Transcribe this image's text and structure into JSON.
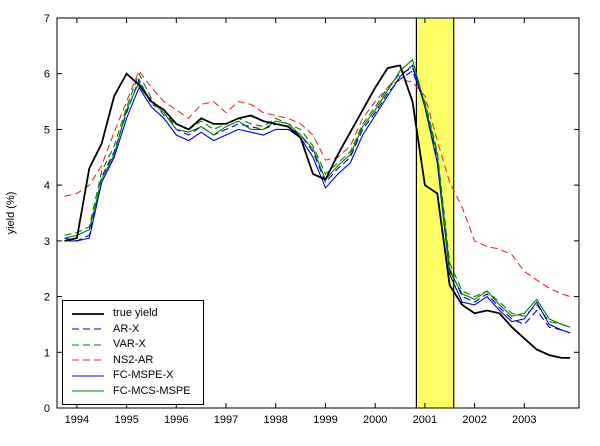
{
  "figure": {
    "background": "#ffffff"
  },
  "chart_data": {
    "type": "line",
    "title": "",
    "xlabel": "",
    "ylabel": "yield (%)",
    "xlim": [
      1993.6,
      2004.1
    ],
    "ylim": [
      0,
      7
    ],
    "x_ticks": [
      1994,
      1995,
      1996,
      1997,
      1998,
      1999,
      2000,
      2001,
      2002,
      2003
    ],
    "y_ticks": [
      0,
      1,
      2,
      3,
      4,
      5,
      6,
      7
    ],
    "grid": false,
    "legend_position": "lower-left",
    "highlight_band": {
      "x0": 2000.83,
      "x1": 2001.58,
      "color": "#ffff66",
      "edge_color": "#000000"
    },
    "x": [
      1993.75,
      1994.0,
      1994.25,
      1994.5,
      1994.75,
      1995.0,
      1995.25,
      1995.5,
      1995.75,
      1996.0,
      1996.25,
      1996.5,
      1996.75,
      1997.0,
      1997.25,
      1997.5,
      1997.75,
      1998.0,
      1998.25,
      1998.5,
      1998.75,
      1999.0,
      1999.25,
      1999.5,
      1999.75,
      2000.0,
      2000.25,
      2000.5,
      2000.75,
      2001.0,
      2001.25,
      2001.5,
      2001.75,
      2002.0,
      2002.25,
      2002.5,
      2002.75,
      2003.0,
      2003.25,
      2003.5,
      2003.75,
      2003.92
    ],
    "series": [
      {
        "name": "true yield",
        "color": "#000000",
        "style": "solid",
        "width": 1.8,
        "values": [
          3.0,
          3.05,
          4.3,
          4.75,
          5.6,
          6.0,
          5.8,
          5.5,
          5.35,
          5.1,
          5.0,
          5.2,
          5.1,
          5.1,
          5.2,
          5.25,
          5.15,
          5.1,
          5.05,
          4.85,
          4.2,
          4.1,
          4.55,
          4.95,
          5.35,
          5.75,
          6.1,
          6.15,
          5.5,
          4.0,
          3.85,
          2.2,
          1.85,
          1.7,
          1.75,
          1.7,
          1.45,
          1.25,
          1.05,
          0.95,
          0.9,
          0.9
        ]
      },
      {
        "name": "AR-X",
        "color": "#0000dd",
        "style": "dashed",
        "width": 1.1,
        "values": [
          3.05,
          3.0,
          3.1,
          4.15,
          4.6,
          5.3,
          5.9,
          5.45,
          5.35,
          5.0,
          4.9,
          5.05,
          4.9,
          5.0,
          5.1,
          5.05,
          5.0,
          5.1,
          5.05,
          4.9,
          4.6,
          4.05,
          4.3,
          4.5,
          5.0,
          5.3,
          5.65,
          5.9,
          6.05,
          5.45,
          4.5,
          2.5,
          2.0,
          1.9,
          2.05,
          1.8,
          1.6,
          1.5,
          1.75,
          1.45,
          1.4,
          1.35
        ]
      },
      {
        "name": "VAR-X",
        "color": "#008000",
        "style": "dashed",
        "width": 1.1,
        "values": [
          3.1,
          3.15,
          3.25,
          4.25,
          4.7,
          5.4,
          6.0,
          5.55,
          5.25,
          5.1,
          5.0,
          5.15,
          5.0,
          5.1,
          5.2,
          5.1,
          5.05,
          5.2,
          5.1,
          5.0,
          4.7,
          4.2,
          4.4,
          4.6,
          5.1,
          5.4,
          5.75,
          6.0,
          6.1,
          5.5,
          4.6,
          2.6,
          2.1,
          2.0,
          2.1,
          1.9,
          1.7,
          1.65,
          1.85,
          1.55,
          1.5,
          1.45
        ]
      },
      {
        "name": "NS2-AR",
        "color": "#e03030",
        "style": "dashed",
        "width": 1.1,
        "values": [
          3.8,
          3.85,
          4.0,
          4.35,
          4.95,
          5.5,
          6.05,
          5.75,
          5.5,
          5.35,
          5.2,
          5.45,
          5.5,
          5.3,
          5.5,
          5.45,
          5.3,
          5.25,
          5.2,
          5.1,
          4.9,
          4.45,
          4.5,
          4.7,
          5.2,
          5.5,
          5.75,
          5.9,
          5.85,
          5.6,
          4.8,
          4.05,
          3.6,
          3.0,
          2.9,
          2.85,
          2.75,
          2.45,
          2.3,
          2.15,
          2.05,
          2.0
        ]
      },
      {
        "name": "FC-MSPE-X",
        "color": "#0000dd",
        "style": "solid",
        "width": 1.1,
        "values": [
          3.0,
          3.0,
          3.05,
          4.05,
          4.5,
          5.2,
          5.75,
          5.4,
          5.2,
          4.9,
          4.8,
          4.95,
          4.8,
          4.9,
          5.0,
          4.95,
          4.9,
          5.0,
          5.0,
          4.85,
          4.5,
          3.95,
          4.2,
          4.4,
          4.9,
          5.25,
          5.6,
          5.95,
          6.15,
          5.4,
          4.4,
          2.4,
          1.9,
          1.85,
          2.0,
          1.75,
          1.55,
          1.6,
          1.9,
          1.5,
          1.4,
          1.35
        ]
      },
      {
        "name": "FC-MCS-MSPE",
        "color": "#008000",
        "style": "solid",
        "width": 1.1,
        "values": [
          3.05,
          3.1,
          3.2,
          4.1,
          4.55,
          5.35,
          5.85,
          5.5,
          5.3,
          5.0,
          4.95,
          5.05,
          4.9,
          5.05,
          5.15,
          5.0,
          5.0,
          5.15,
          5.1,
          4.9,
          4.65,
          4.1,
          4.35,
          4.55,
          5.05,
          5.35,
          5.7,
          6.05,
          6.25,
          5.45,
          4.55,
          2.45,
          2.05,
          1.95,
          2.1,
          1.85,
          1.65,
          1.7,
          1.95,
          1.6,
          1.5,
          1.45
        ]
      }
    ]
  }
}
